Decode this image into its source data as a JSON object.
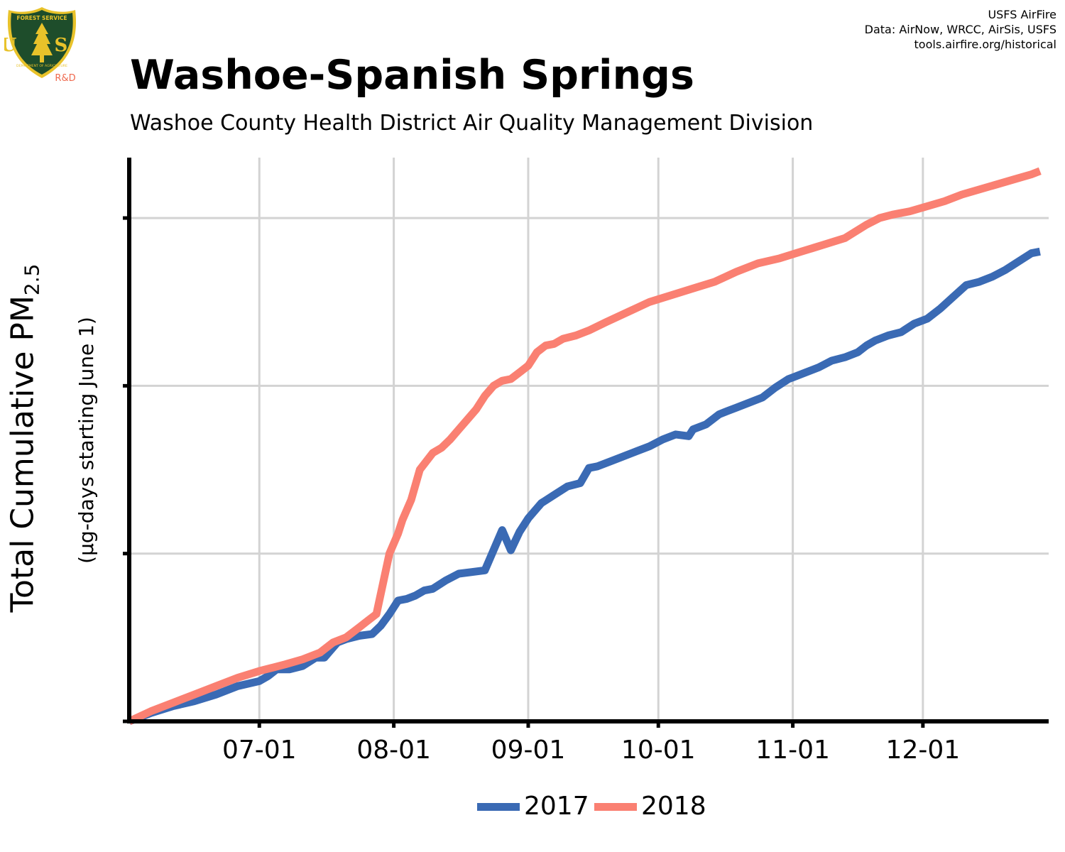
{
  "logo": {
    "name": "USFS shield",
    "top_text": "FOREST SERVICE",
    "letters": "U S",
    "bottom_text": "DEPARTMENT OF AGRICULTURE",
    "tag": "R&D",
    "colors": {
      "shield": "#1e4d2b",
      "gold": "#e8c22a",
      "tag": "#ef6a4f"
    }
  },
  "credits": [
    "USFS AirFire",
    "Data: AirNow, WRCC, AirSis, USFS",
    "tools.airfire.org/historical"
  ],
  "chart_data": {
    "type": "line",
    "title": "Washoe-Spanish Springs",
    "subtitle": "Washoe County Health District Air Quality Management Division",
    "ylabel": "Total Cumulative PM",
    "ylabel_subscript": "2.5",
    "ylabel_units": "(µg-days starting June 1)",
    "x_tick_labels": [
      "07-01",
      "08-01",
      "09-01",
      "10-01",
      "11-01",
      "12-01"
    ],
    "x_tick_days": [
      30,
      61,
      92,
      122,
      153,
      183
    ],
    "xlim": [
      0,
      212
    ],
    "ylim": [
      0,
      1680
    ],
    "y_ticks": [
      0,
      500,
      1000,
      1500
    ],
    "y_tick_labels_shown": false,
    "grid": true,
    "legend_position": "bottom-center",
    "series": [
      {
        "name": "2017",
        "color": "#3a6ab4",
        "x": [
          0,
          5,
          10,
          15,
          20,
          25,
          30,
          32,
          34,
          37,
          40,
          43,
          45,
          46,
          48,
          50,
          53,
          56,
          58,
          60,
          62,
          64,
          66,
          68,
          70,
          73,
          76,
          79,
          82,
          86,
          88,
          90,
          92,
          95,
          98,
          101,
          104,
          106,
          108,
          111,
          114,
          117,
          120,
          123,
          126,
          129,
          130,
          133,
          136,
          138,
          140,
          143,
          146,
          149,
          152,
          153,
          156,
          159,
          162,
          165,
          168,
          170,
          172,
          175,
          178,
          181,
          184,
          187,
          190,
          193,
          196,
          199,
          202,
          205,
          208,
          210
        ],
        "y": [
          0,
          25,
          45,
          60,
          80,
          105,
          120,
          135,
          155,
          155,
          165,
          190,
          190,
          205,
          235,
          245,
          255,
          260,
          285,
          320,
          360,
          365,
          375,
          390,
          395,
          420,
          440,
          445,
          450,
          570,
          510,
          565,
          605,
          650,
          675,
          700,
          710,
          755,
          760,
          775,
          790,
          805,
          820,
          840,
          855,
          850,
          870,
          885,
          915,
          925,
          935,
          950,
          965,
          995,
          1020,
          1025,
          1040,
          1055,
          1075,
          1085,
          1100,
          1120,
          1135,
          1150,
          1160,
          1185,
          1200,
          1230,
          1265,
          1300,
          1310,
          1325,
          1345,
          1370,
          1395,
          1400
        ]
      },
      {
        "name": "2018",
        "color": "#fa8072",
        "x": [
          0,
          5,
          10,
          15,
          20,
          25,
          30,
          33,
          36,
          40,
          44,
          47,
          50,
          53,
          55,
          57,
          58,
          60,
          62,
          63,
          65,
          67,
          70,
          72,
          74,
          76,
          78,
          80,
          82,
          84,
          86,
          88,
          90,
          92,
          94,
          96,
          98,
          100,
          103,
          106,
          110,
          115,
          120,
          125,
          130,
          135,
          140,
          145,
          150,
          155,
          160,
          165,
          170,
          173,
          176,
          180,
          184,
          188,
          192,
          196,
          200,
          204,
          208,
          210
        ],
        "y": [
          0,
          30,
          55,
          80,
          105,
          130,
          150,
          160,
          170,
          185,
          205,
          235,
          250,
          280,
          300,
          320,
          380,
          500,
          560,
          600,
          660,
          750,
          800,
          815,
          840,
          870,
          900,
          930,
          970,
          1000,
          1015,
          1020,
          1040,
          1060,
          1100,
          1120,
          1125,
          1140,
          1150,
          1165,
          1190,
          1220,
          1250,
          1270,
          1290,
          1310,
          1340,
          1365,
          1380,
          1400,
          1420,
          1440,
          1480,
          1500,
          1510,
          1520,
          1535,
          1550,
          1570,
          1585,
          1600,
          1615,
          1630,
          1640
        ]
      }
    ]
  }
}
